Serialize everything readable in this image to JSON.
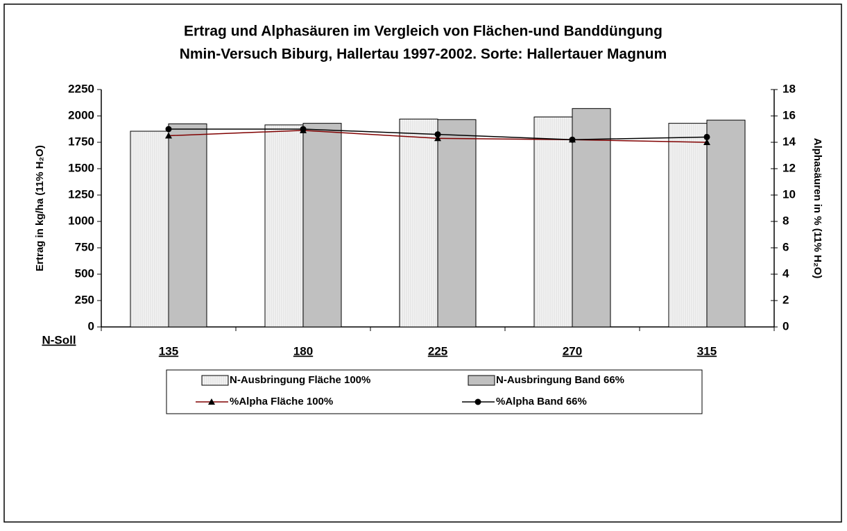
{
  "chart_data": {
    "type": "bar",
    "title": "Ertrag und Alphasäuren im Vergleich von Flächen-und Banddüngung",
    "subtitle": "Nmin-Versuch Biburg, Hallertau 1997-2002.  Sorte: Hallertauer Magnum",
    "x_label": "N-Soll",
    "y_label": "Ertrag in kg/ha (11% H₂O)",
    "y2_label": "Alphasäuren in % (11% H₂O)",
    "categories": [
      "135",
      "180",
      "225",
      "270",
      "315"
    ],
    "series": [
      {
        "name": "N-Ausbringung Fläche 100%",
        "type": "bar",
        "color": "#f0f0f0",
        "values": [
          1855,
          1915,
          1970,
          1990,
          1930
        ]
      },
      {
        "name": "N-Ausbringung Band 66%",
        "type": "bar",
        "color": "#c0c0c0",
        "values": [
          1925,
          1930,
          1965,
          2070,
          1960
        ]
      },
      {
        "name": "%Alpha Fläche 100%",
        "type": "line",
        "axis": "y2",
        "color": "#800000",
        "marker": "triangle",
        "values": [
          14.5,
          14.9,
          14.3,
          14.2,
          14.0
        ]
      },
      {
        "name": "%Alpha Band 66%",
        "type": "line",
        "axis": "y2",
        "color": "#000000",
        "marker": "circle",
        "values": [
          15.0,
          15.0,
          14.6,
          14.2,
          14.4
        ]
      }
    ],
    "ylim": [
      0,
      2250
    ],
    "yticks": [
      0,
      250,
      500,
      750,
      1000,
      1250,
      1500,
      1750,
      2000,
      2250
    ],
    "y2lim": [
      0,
      18
    ],
    "y2ticks": [
      0,
      2,
      4,
      6,
      8,
      10,
      12,
      14,
      16,
      18
    ],
    "grid": false,
    "legend": "bottom"
  }
}
